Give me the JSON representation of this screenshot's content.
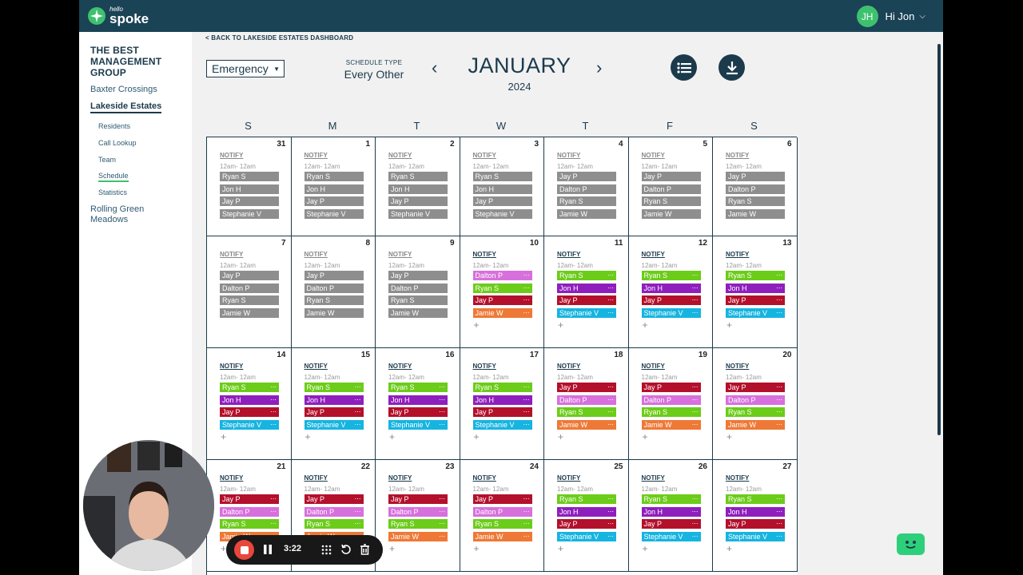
{
  "app": {
    "logo_small": "hello",
    "logo_big": "spoke",
    "user_initials": "JH",
    "user_greeting": "Hi Jon"
  },
  "sidebar": {
    "org": "THE BEST MANAGEMENT GROUP",
    "properties": [
      "Baxter Crossings",
      "Lakeside Estates",
      "Rolling Green Meadows"
    ],
    "subitems": [
      "Residents",
      "Call Lookup",
      "Team",
      "Schedule",
      "Statistics"
    ]
  },
  "backlink": "< BACK TO LAKESIDE ESTATES DASHBOARD",
  "toolbar": {
    "schedule_select": "Emergency",
    "schedule_type_label": "SCHEDULE TYPE",
    "schedule_type_value": "Every Other",
    "month": "JANUARY",
    "year": "2024",
    "prev": "‹",
    "next": "›",
    "list_icon": "list-icon",
    "download_icon": "download-icon"
  },
  "calendar": {
    "weekdays": [
      "S",
      "M",
      "T",
      "W",
      "T",
      "F",
      "S"
    ],
    "notify_label": "NOTIFY",
    "time_label": "12am- 12am",
    "colors": {
      "gray": "#8e8e8e",
      "green": "#6ccc1a",
      "purple": "#8f1fbd",
      "red": "#b3102b",
      "pink": "#d770dc",
      "orange": "#ee7936",
      "blue": "#16b4e0"
    },
    "weeks": [
      [
        {
          "day": "31",
          "active": false,
          "people": [
            [
              "Ryan S",
              "gray"
            ],
            [
              "Jon H",
              "gray"
            ],
            [
              "Jay P",
              "gray"
            ],
            [
              "Stephanie V",
              "gray"
            ]
          ]
        },
        {
          "day": "1",
          "active": false,
          "people": [
            [
              "Ryan S",
              "gray"
            ],
            [
              "Jon H",
              "gray"
            ],
            [
              "Jay P",
              "gray"
            ],
            [
              "Stephanie V",
              "gray"
            ]
          ]
        },
        {
          "day": "2",
          "active": false,
          "people": [
            [
              "Ryan S",
              "gray"
            ],
            [
              "Jon H",
              "gray"
            ],
            [
              "Jay P",
              "gray"
            ],
            [
              "Stephanie V",
              "gray"
            ]
          ]
        },
        {
          "day": "3",
          "active": false,
          "people": [
            [
              "Ryan S",
              "gray"
            ],
            [
              "Jon H",
              "gray"
            ],
            [
              "Jay P",
              "gray"
            ],
            [
              "Stephanie V",
              "gray"
            ]
          ]
        },
        {
          "day": "4",
          "active": false,
          "people": [
            [
              "Jay P",
              "gray"
            ],
            [
              "Dalton P",
              "gray"
            ],
            [
              "Ryan S",
              "gray"
            ],
            [
              "Jamie W",
              "gray"
            ]
          ]
        },
        {
          "day": "5",
          "active": false,
          "people": [
            [
              "Jay P",
              "gray"
            ],
            [
              "Dalton P",
              "gray"
            ],
            [
              "Ryan S",
              "gray"
            ],
            [
              "Jamie W",
              "gray"
            ]
          ]
        },
        {
          "day": "6",
          "active": false,
          "people": [
            [
              "Jay P",
              "gray"
            ],
            [
              "Dalton P",
              "gray"
            ],
            [
              "Ryan S",
              "gray"
            ],
            [
              "Jamie W",
              "gray"
            ]
          ]
        }
      ],
      [
        {
          "day": "7",
          "active": false,
          "people": [
            [
              "Jay P",
              "gray"
            ],
            [
              "Dalton P",
              "gray"
            ],
            [
              "Ryan S",
              "gray"
            ],
            [
              "Jamie W",
              "gray"
            ]
          ]
        },
        {
          "day": "8",
          "active": false,
          "people": [
            [
              "Jay P",
              "gray"
            ],
            [
              "Dalton P",
              "gray"
            ],
            [
              "Ryan S",
              "gray"
            ],
            [
              "Jamie W",
              "gray"
            ]
          ]
        },
        {
          "day": "9",
          "active": false,
          "people": [
            [
              "Jay P",
              "gray"
            ],
            [
              "Dalton P",
              "gray"
            ],
            [
              "Ryan S",
              "gray"
            ],
            [
              "Jamie W",
              "gray"
            ]
          ]
        },
        {
          "day": "10",
          "active": true,
          "people": [
            [
              "Dalton P",
              "pink"
            ],
            [
              "Ryan S",
              "green"
            ],
            [
              "Jay P",
              "red"
            ],
            [
              "Jamie W",
              "orange"
            ]
          ]
        },
        {
          "day": "11",
          "active": true,
          "people": [
            [
              "Ryan S",
              "green"
            ],
            [
              "Jon H",
              "purple"
            ],
            [
              "Jay P",
              "red"
            ],
            [
              "Stephanie V",
              "blue"
            ]
          ]
        },
        {
          "day": "12",
          "active": true,
          "people": [
            [
              "Ryan S",
              "green"
            ],
            [
              "Jon H",
              "purple"
            ],
            [
              "Jay P",
              "red"
            ],
            [
              "Stephanie V",
              "blue"
            ]
          ]
        },
        {
          "day": "13",
          "active": true,
          "people": [
            [
              "Ryan S",
              "green"
            ],
            [
              "Jon H",
              "purple"
            ],
            [
              "Jay P",
              "red"
            ],
            [
              "Stephanie V",
              "blue"
            ]
          ]
        }
      ],
      [
        {
          "day": "14",
          "active": true,
          "people": [
            [
              "Ryan S",
              "green"
            ],
            [
              "Jon H",
              "purple"
            ],
            [
              "Jay P",
              "red"
            ],
            [
              "Stephanie V",
              "blue"
            ]
          ]
        },
        {
          "day": "15",
          "active": true,
          "people": [
            [
              "Ryan S",
              "green"
            ],
            [
              "Jon H",
              "purple"
            ],
            [
              "Jay P",
              "red"
            ],
            [
              "Stephanie V",
              "blue"
            ]
          ]
        },
        {
          "day": "16",
          "active": true,
          "people": [
            [
              "Ryan S",
              "green"
            ],
            [
              "Jon H",
              "purple"
            ],
            [
              "Jay P",
              "red"
            ],
            [
              "Stephanie V",
              "blue"
            ]
          ]
        },
        {
          "day": "17",
          "active": true,
          "people": [
            [
              "Ryan S",
              "green"
            ],
            [
              "Jon H",
              "purple"
            ],
            [
              "Jay P",
              "red"
            ],
            [
              "Stephanie V",
              "blue"
            ]
          ]
        },
        {
          "day": "18",
          "active": true,
          "people": [
            [
              "Jay P",
              "red"
            ],
            [
              "Dalton P",
              "pink"
            ],
            [
              "Ryan S",
              "green"
            ],
            [
              "Jamie W",
              "orange"
            ]
          ]
        },
        {
          "day": "19",
          "active": true,
          "people": [
            [
              "Jay P",
              "red"
            ],
            [
              "Dalton P",
              "pink"
            ],
            [
              "Ryan S",
              "green"
            ],
            [
              "Jamie W",
              "orange"
            ]
          ]
        },
        {
          "day": "20",
          "active": true,
          "people": [
            [
              "Jay P",
              "red"
            ],
            [
              "Dalton P",
              "pink"
            ],
            [
              "Ryan S",
              "green"
            ],
            [
              "Jamie W",
              "orange"
            ]
          ]
        }
      ],
      [
        {
          "day": "21",
          "active": true,
          "people": [
            [
              "Jay P",
              "red"
            ],
            [
              "Dalton P",
              "pink"
            ],
            [
              "Ryan S",
              "green"
            ],
            [
              "Jamie W",
              "orange"
            ]
          ]
        },
        {
          "day": "22",
          "active": true,
          "people": [
            [
              "Jay P",
              "red"
            ],
            [
              "Dalton P",
              "pink"
            ],
            [
              "Ryan S",
              "green"
            ],
            [
              "Jamie W",
              "orange"
            ]
          ]
        },
        {
          "day": "23",
          "active": true,
          "people": [
            [
              "Jay P",
              "red"
            ],
            [
              "Dalton P",
              "pink"
            ],
            [
              "Ryan S",
              "green"
            ],
            [
              "Jamie W",
              "orange"
            ]
          ]
        },
        {
          "day": "24",
          "active": true,
          "people": [
            [
              "Jay P",
              "red"
            ],
            [
              "Dalton P",
              "pink"
            ],
            [
              "Ryan S",
              "green"
            ],
            [
              "Jamie W",
              "orange"
            ]
          ]
        },
        {
          "day": "25",
          "active": true,
          "people": [
            [
              "Ryan S",
              "green"
            ],
            [
              "Jon H",
              "purple"
            ],
            [
              "Jay P",
              "red"
            ],
            [
              "Stephanie V",
              "blue"
            ]
          ]
        },
        {
          "day": "26",
          "active": true,
          "people": [
            [
              "Ryan S",
              "green"
            ],
            [
              "Jon H",
              "purple"
            ],
            [
              "Jay P",
              "red"
            ],
            [
              "Stephanie V",
              "blue"
            ]
          ]
        },
        {
          "day": "27",
          "active": true,
          "people": [
            [
              "Ryan S",
              "green"
            ],
            [
              "Jon H",
              "purple"
            ],
            [
              "Jay P",
              "red"
            ],
            [
              "Stephanie V",
              "blue"
            ]
          ]
        }
      ]
    ]
  },
  "recorder": {
    "time": "3:22",
    "stop_icon": "stop-icon",
    "pause_icon": "pause-icon",
    "grid_icon": "grid-icon",
    "restart_icon": "restart-icon",
    "delete_icon": "trash-icon"
  },
  "chat_icon": "chat-bot-icon"
}
